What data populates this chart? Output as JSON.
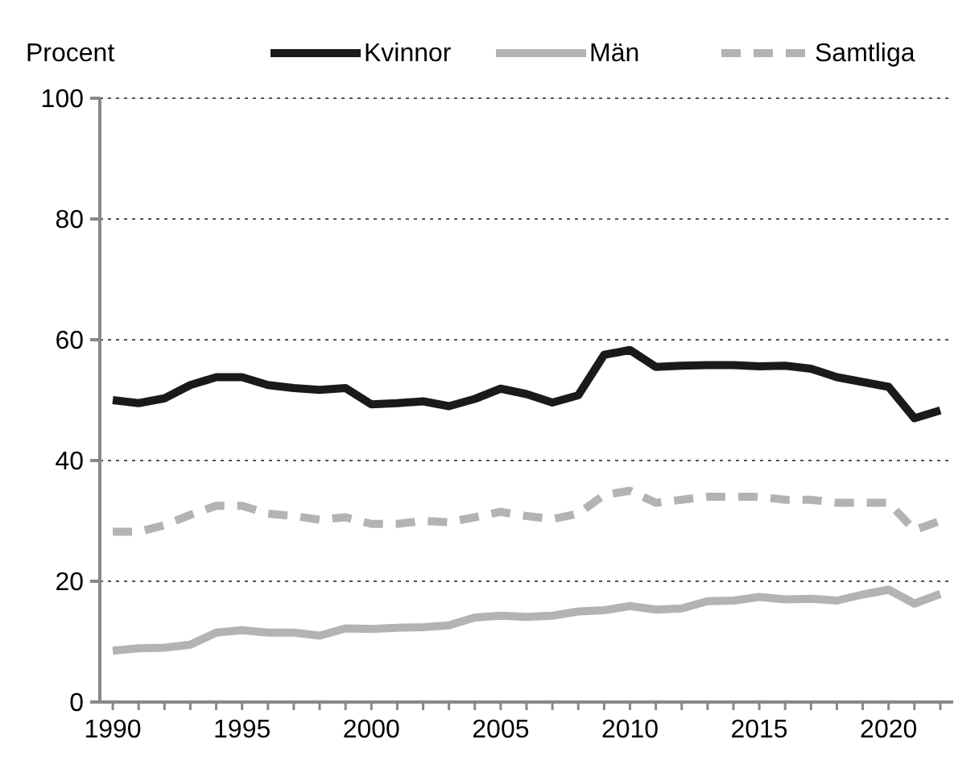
{
  "chart_data": {
    "type": "line",
    "ylabel": "Procent",
    "x": [
      1990,
      1991,
      1992,
      1993,
      1994,
      1995,
      1996,
      1997,
      1998,
      1999,
      2000,
      2001,
      2002,
      2003,
      2004,
      2005,
      2006,
      2007,
      2008,
      2009,
      2010,
      2011,
      2012,
      2013,
      2014,
      2015,
      2016,
      2017,
      2018,
      2019,
      2020,
      2021,
      2022
    ],
    "xlim": [
      1989.5,
      2022.5
    ],
    "xticks": [
      1990,
      1995,
      2000,
      2005,
      2010,
      2015,
      2020
    ],
    "ylim": [
      0,
      100
    ],
    "yticks": [
      0,
      20,
      40,
      60,
      80,
      100
    ],
    "grid": "y",
    "legend": "top",
    "marker": "none",
    "series": [
      {
        "name": "Kvinnor",
        "color": "#1a1a1a",
        "line_style": "solid",
        "values": [
          50,
          49.5,
          50.3,
          52.5,
          53.8,
          53.8,
          52.5,
          52,
          51.7,
          52,
          49.3,
          49.5,
          49.8,
          49,
          50.2,
          51.9,
          51,
          49.6,
          50.8,
          57.5,
          58.3,
          55.5,
          55.7,
          55.8,
          55.8,
          55.6,
          55.7,
          55.2,
          53.8,
          53,
          52.2,
          47,
          48.3
        ]
      },
      {
        "name": "Män",
        "color": "#b3b3b5",
        "line_style": "solid",
        "values": [
          8.5,
          8.9,
          9,
          9.5,
          11.5,
          11.9,
          11.5,
          11.5,
          11,
          12.2,
          12.1,
          12.3,
          12.4,
          12.7,
          14,
          14.3,
          14.1,
          14.3,
          15,
          15.2,
          15.9,
          15.3,
          15.5,
          16.7,
          16.8,
          17.4,
          17,
          17.1,
          16.8,
          17.8,
          18.6,
          16.3,
          17.9
        ]
      },
      {
        "name": "Samtliga",
        "color": "#b3b3b5",
        "line_style": "dashed",
        "values": [
          28.2,
          28.2,
          29.3,
          31,
          32.5,
          32.5,
          31.2,
          30.8,
          30.2,
          30.6,
          29.5,
          29.5,
          30,
          29.8,
          30.6,
          31.5,
          30.8,
          30.3,
          31.2,
          34.3,
          35,
          33,
          33.5,
          34,
          34,
          34,
          33.5,
          33.5,
          33,
          33,
          33,
          28.5,
          30
        ]
      }
    ]
  }
}
